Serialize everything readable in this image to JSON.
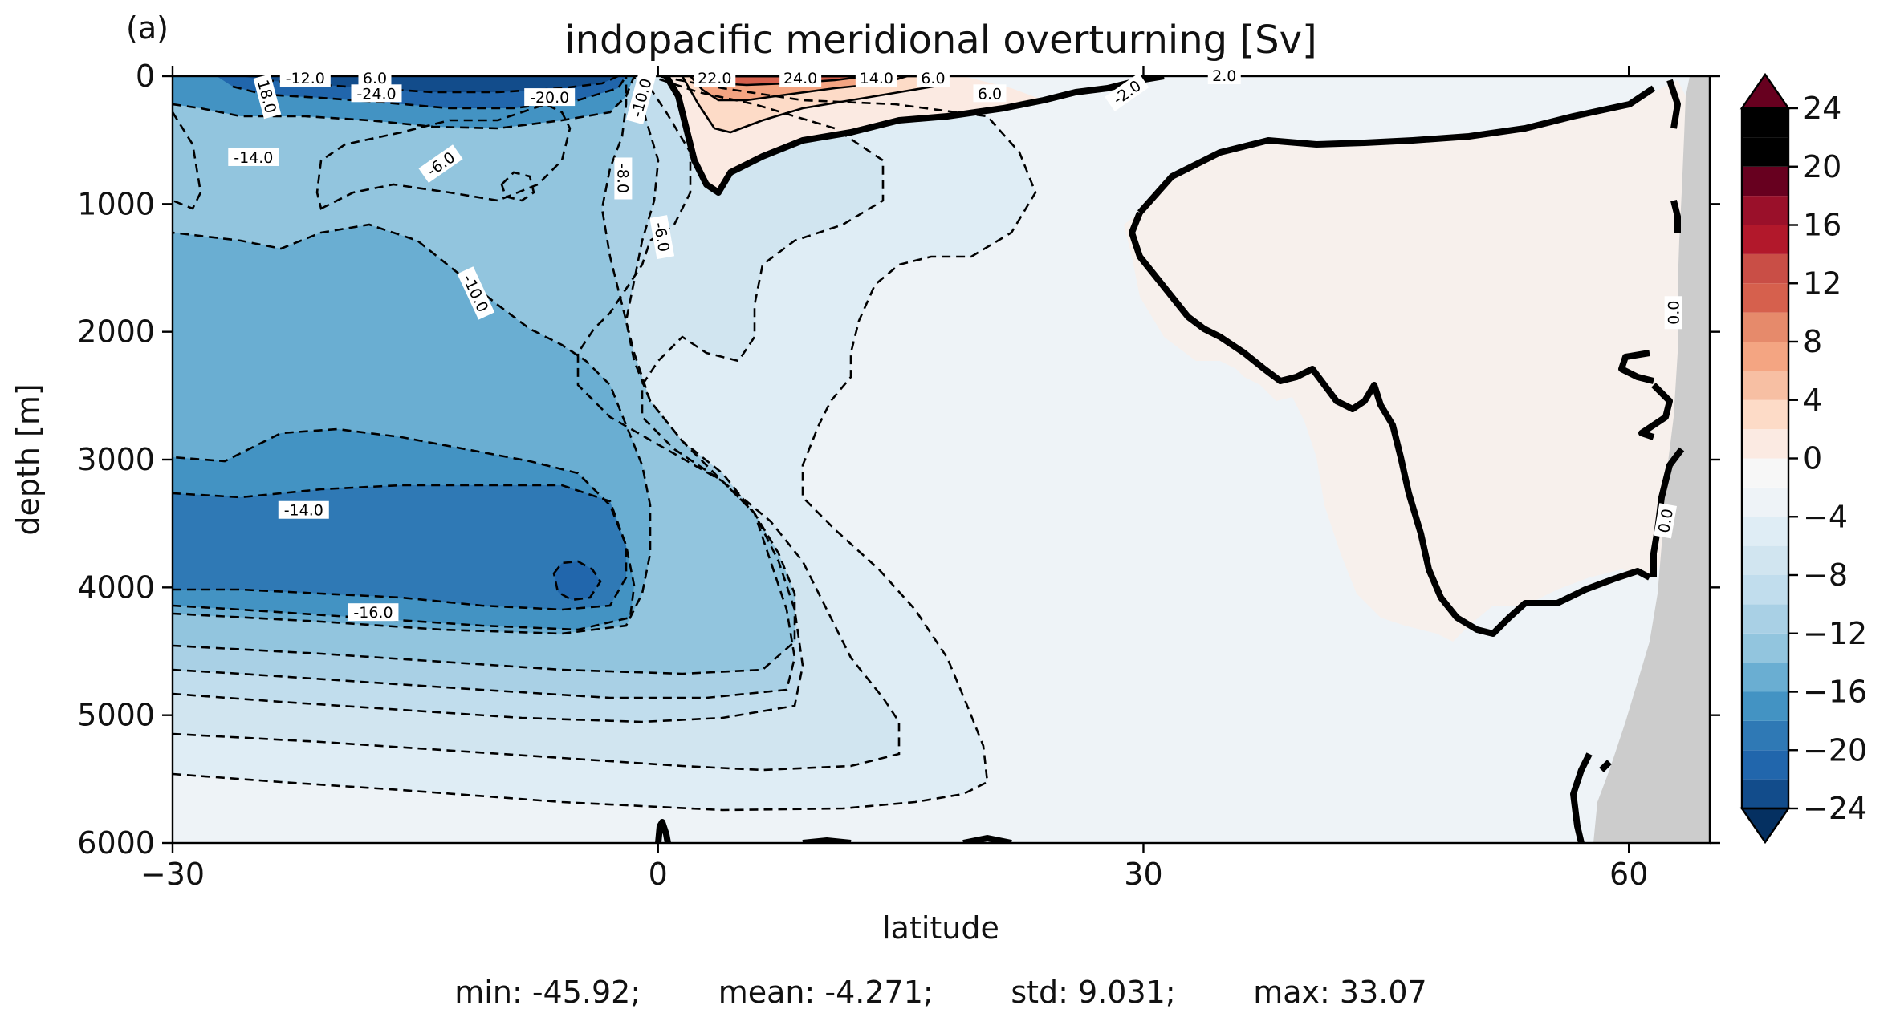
{
  "figure": {
    "panel_label": "(a)",
    "stats": "min: -45.92;        mean: -4.271;        std: 9.031;        max: 33.07"
  },
  "chart_data": {
    "type": "heatmap",
    "title": "indopacific meridional overturning [Sv]",
    "xlabel": "latitude",
    "ylabel": "depth [m]",
    "xlim": [
      -30,
      65
    ],
    "ylim": [
      6000,
      0
    ],
    "x_ticks": [
      -30,
      0,
      30,
      60
    ],
    "x_tick_labels": [
      "−30",
      "0",
      "30",
      "60"
    ],
    "y_ticks": [
      0,
      1000,
      2000,
      3000,
      4000,
      5000,
      6000
    ],
    "y_tick_labels": [
      "0",
      "1000",
      "2000",
      "3000",
      "4000",
      "5000",
      "6000"
    ],
    "colorbar": {
      "levels": [
        -24,
        -22,
        -20,
        -18,
        -16,
        -14,
        -12,
        -10,
        -8,
        -6,
        -4,
        -2,
        0,
        2,
        4,
        6,
        8,
        10,
        12,
        14,
        16,
        18,
        20,
        22,
        24
      ],
      "ticks": [
        -24,
        -20,
        -16,
        -12,
        -8,
        -4,
        0,
        4,
        8,
        12,
        16,
        20,
        24
      ],
      "tick_labels": [
        "−24",
        "−20",
        "−16",
        "−12",
        "−8",
        "−4",
        "0",
        "4",
        "8",
        "12",
        "16",
        "20",
        "24"
      ],
      "extend": "both",
      "colors": [
        "#053061",
        "#124c8b",
        "#2166ac",
        "#2f79b5",
        "#4393c3",
        "#6aaed2",
        "#92c5de",
        "#a9d0e5",
        "#c1dded",
        "#d1e5f0",
        "#dfedf5",
        "#eef3f7",
        "#f7f7f7",
        "#fbeae2",
        "#fddbc7",
        "#f7bfa3",
        "#f4a582",
        "#e68a6b",
        "#d6604d",
        "#c94e46",
        "#b2182b",
        "#9a102a",
        "#67001f"
      ]
    },
    "contour_labels": [
      "-12.0",
      "6.0",
      "-24.0",
      "-20.0",
      "-14.0",
      "18.0",
      "-10.0",
      "22.0",
      "24.0",
      "14.0",
      "6.0",
      "6.0",
      "-2.0",
      "2.0",
      "-6.0",
      "-8.0",
      "-6.0",
      "-10.0",
      "-14.0",
      "-16.0",
      "0.0",
      "0.0"
    ],
    "contour_label_positions": [
      {
        "lat": -21.8,
        "depth": 20,
        "rot": 0
      },
      {
        "lat": -17.5,
        "depth": 20,
        "rot": 0
      },
      {
        "lat": -17.4,
        "depth": 140,
        "rot": 0
      },
      {
        "lat": -6.7,
        "depth": 170,
        "rot": 0
      },
      {
        "lat": -25.0,
        "depth": 640,
        "rot": 0
      },
      {
        "lat": -24.2,
        "depth": 160,
        "rot": 75
      },
      {
        "lat": -1.0,
        "depth": 170,
        "rot": -75
      },
      {
        "lat": 3.5,
        "depth": 20,
        "rot": 0
      },
      {
        "lat": 8.8,
        "depth": 20,
        "rot": 0
      },
      {
        "lat": 13.5,
        "depth": 20,
        "rot": 0
      },
      {
        "lat": 17.0,
        "depth": 20,
        "rot": 0
      },
      {
        "lat": 20.5,
        "depth": 140,
        "rot": 0
      },
      {
        "lat": 29.0,
        "depth": 130,
        "rot": -35
      },
      {
        "lat": 35.0,
        "depth": 0,
        "rot": 0
      },
      {
        "lat": -13.4,
        "depth": 690,
        "rot": -35
      },
      {
        "lat": -2.2,
        "depth": 800,
        "rot": 90
      },
      {
        "lat": 0.2,
        "depth": 1260,
        "rot": 80
      },
      {
        "lat": -11.3,
        "depth": 1700,
        "rot": 65
      },
      {
        "lat": -21.9,
        "depth": 3400,
        "rot": 0
      },
      {
        "lat": -17.6,
        "depth": 4200,
        "rot": 0
      },
      {
        "lat": 62.8,
        "depth": 1850,
        "rot": -90
      },
      {
        "lat": 62.3,
        "depth": 3480,
        "rot": -80
      }
    ]
  }
}
